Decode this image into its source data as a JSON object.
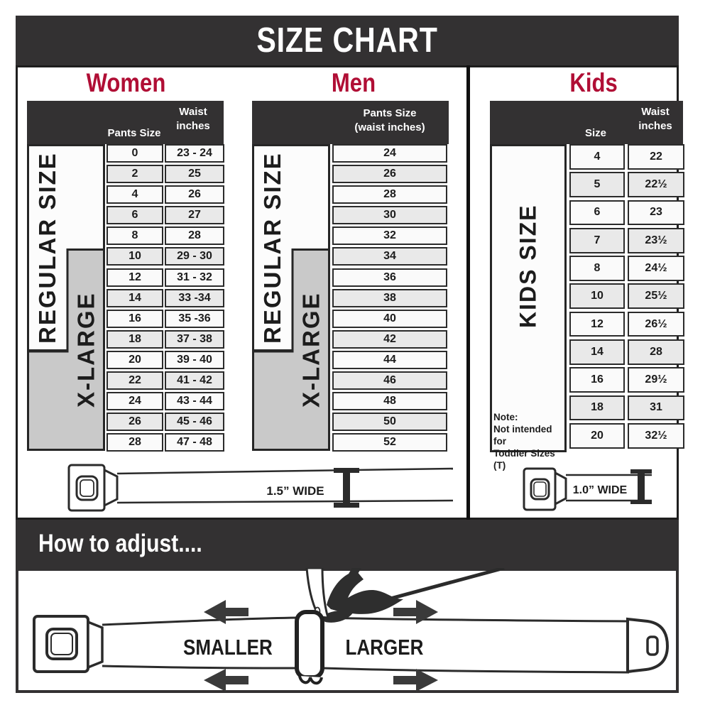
{
  "title": "SIZE CHART",
  "colors": {
    "dark_bar": "#333132",
    "accent_red": "#b00e35",
    "row_alt_gray": "#e9e9e9",
    "label_gray": "#c9c9c9",
    "line_dark": "#2b2b2b"
  },
  "women": {
    "heading": "Women",
    "size_header": "Pants Size",
    "waist_header_line1": "Waist",
    "waist_header_line2": "inches",
    "regular_label": "REGULAR SIZE",
    "xlarge_label": "X-LARGE",
    "rows": [
      [
        "0",
        "23 - 24"
      ],
      [
        "2",
        "25"
      ],
      [
        "4",
        "26"
      ],
      [
        "6",
        "27"
      ],
      [
        "8",
        "28"
      ],
      [
        "10",
        "29 - 30"
      ],
      [
        "12",
        "31 - 32"
      ],
      [
        "14",
        "33 -34"
      ],
      [
        "16",
        "35 -36"
      ],
      [
        "18",
        "37 - 38"
      ],
      [
        "20",
        "39 - 40"
      ],
      [
        "22",
        "41 - 42"
      ],
      [
        "24",
        "43 - 44"
      ],
      [
        "26",
        "45 - 46"
      ],
      [
        "28",
        "47 - 48"
      ]
    ]
  },
  "men": {
    "heading": "Men",
    "col_header_line1": "Pants Size",
    "col_header_line2": "(waist inches)",
    "regular_label": "REGULAR SIZE",
    "xlarge_label": "X-LARGE",
    "rows": [
      "24",
      "26",
      "28",
      "30",
      "32",
      "34",
      "36",
      "38",
      "40",
      "42",
      "44",
      "46",
      "48",
      "50",
      "52"
    ]
  },
  "kids": {
    "heading": "Kids",
    "size_header": "Size",
    "waist_header_line1": "Waist",
    "waist_header_line2": "inches",
    "label": "KIDS SIZE",
    "note_line1": "Note:",
    "note_line2": "Not intended for",
    "note_line3": "Toddler Sizes (T)",
    "rows": [
      [
        "4",
        "22"
      ],
      [
        "5",
        "22½"
      ],
      [
        "6",
        "23"
      ],
      [
        "7",
        "23½"
      ],
      [
        "8",
        "24½"
      ],
      [
        "10",
        "25½"
      ],
      [
        "12",
        "26½"
      ],
      [
        "14",
        "28"
      ],
      [
        "16",
        "29½"
      ],
      [
        "18",
        "31"
      ],
      [
        "20",
        "32½"
      ]
    ]
  },
  "belts": {
    "adult_label": "1.5” WIDE",
    "kids_label": "1.0” WIDE"
  },
  "adjust": {
    "heading": "How to adjust....",
    "smaller": "SMALLER",
    "larger": "LARGER"
  }
}
